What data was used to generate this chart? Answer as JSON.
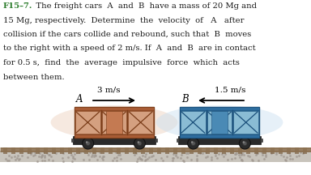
{
  "text_lines": [
    {
      "bold_part": "F15–7.",
      "normal_part": "   The freight cars  A  and  B  have a mass of 20 Mg and"
    },
    {
      "bold_part": "",
      "normal_part": "15 Mg, respectively.  Determine  the  velocity  of   A   after"
    },
    {
      "bold_part": "",
      "normal_part": "collision if the cars collide and rebound, such that  B  moves"
    },
    {
      "bold_part": "",
      "normal_part": "to the right with a speed of 2 m/s. If  A  and  B  are in contact"
    },
    {
      "bold_part": "",
      "normal_part": "for 0.5 s,  find  the  average  impulsive  force  which  acts"
    },
    {
      "bold_part": "",
      "normal_part": "between them."
    }
  ],
  "car_A_body": "#c47a52",
  "car_A_dark": "#7a3c18",
  "car_A_mid": "#a85c35",
  "car_B_body": "#4a8ab5",
  "car_B_dark": "#1a4f7a",
  "car_B_mid": "#2e6d9e",
  "car_B_light": "#6aaad4",
  "wheel_dark": "#222222",
  "chassis_color": "#333333",
  "rail_color": "#8b7050",
  "ballast_color": "#c8c4bc",
  "ground_bg": "#e8e4de",
  "vel_A": "3 m/s",
  "vel_B": "1.5 m/s",
  "label_A": "A",
  "label_B": "B",
  "title_color": "#2d7d2d",
  "text_color": "#1a1a1a",
  "bg_color": "#ffffff",
  "glow_A": "#f0d8c8",
  "glow_B": "#c8dff0"
}
